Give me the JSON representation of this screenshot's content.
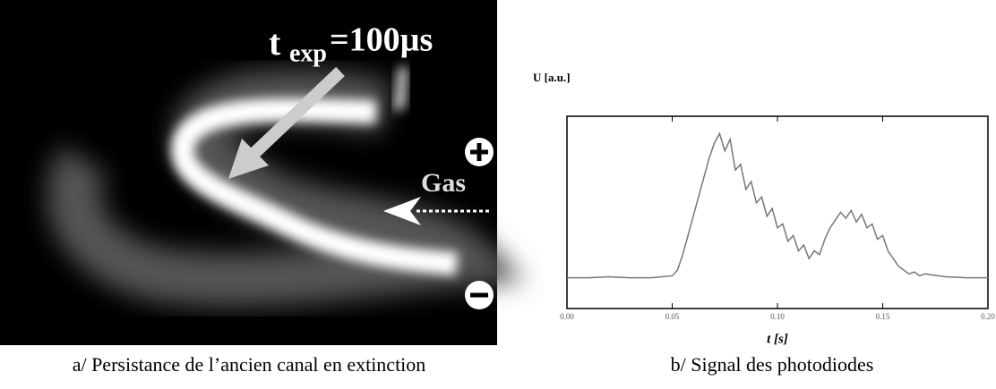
{
  "panel_a": {
    "label_t": "t",
    "label_exp": "exp",
    "label_time": "=100µs",
    "label_gas": "Gas",
    "caption": "a/ Persistance de l’ancien canal en extinction"
  },
  "caption_b": "b/ Signal des photodiodes",
  "chart_data": {
    "type": "line",
    "y_label": "U  [a.u.]",
    "x_label": "t  [s]",
    "x": [
      0,
      0.01,
      0.02,
      0.03,
      0.04,
      0.045,
      0.05,
      0.0525,
      0.055,
      0.0575,
      0.06,
      0.0625,
      0.065,
      0.0675,
      0.07,
      0.0725,
      0.075,
      0.0775,
      0.08,
      0.0825,
      0.085,
      0.0875,
      0.09,
      0.0925,
      0.095,
      0.0975,
      0.1,
      0.1025,
      0.105,
      0.1075,
      0.11,
      0.1125,
      0.115,
      0.1175,
      0.12,
      0.1225,
      0.125,
      0.1275,
      0.13,
      0.1325,
      0.135,
      0.1375,
      0.14,
      0.1425,
      0.145,
      0.1475,
      0.15,
      0.1525,
      0.155,
      0.1575,
      0.16,
      0.1625,
      0.165,
      0.1675,
      0.17,
      0.18,
      0.19,
      0.2
    ],
    "series": [
      {
        "name": "U",
        "color": "#777777",
        "values": [
          0.16,
          0.16,
          0.165,
          0.16,
          0.16,
          0.165,
          0.17,
          0.2,
          0.28,
          0.38,
          0.48,
          0.58,
          0.68,
          0.78,
          0.86,
          0.91,
          0.82,
          0.88,
          0.72,
          0.75,
          0.62,
          0.66,
          0.55,
          0.58,
          0.48,
          0.52,
          0.42,
          0.44,
          0.35,
          0.38,
          0.3,
          0.33,
          0.26,
          0.3,
          0.28,
          0.36,
          0.42,
          0.46,
          0.5,
          0.47,
          0.51,
          0.45,
          0.49,
          0.42,
          0.44,
          0.36,
          0.38,
          0.3,
          0.26,
          0.22,
          0.2,
          0.18,
          0.19,
          0.17,
          0.18,
          0.165,
          0.16,
          0.16
        ]
      }
    ],
    "xlim": [
      0,
      0.2
    ],
    "ylim": [
      0,
      1
    ],
    "xticks": [
      {
        "value": 0,
        "label": "0.00"
      },
      {
        "value": 0.05,
        "label": "0.05"
      },
      {
        "value": 0.1,
        "label": "0.10"
      },
      {
        "value": 0.15,
        "label": "0.15"
      },
      {
        "value": 0.2,
        "label": "0.20"
      }
    ]
  }
}
